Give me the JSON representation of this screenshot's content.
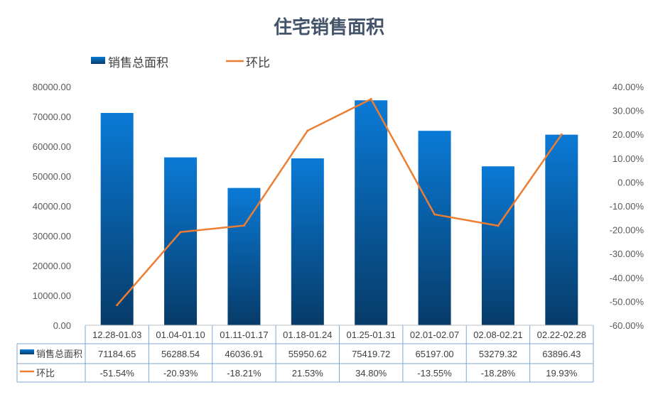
{
  "chart_data": {
    "type": "bar+line",
    "title": "住宅销售面积",
    "categories": [
      "12.28-01.03",
      "01.04-01.10",
      "01.11-01.17",
      "01.18-01.24",
      "01.25-01.31",
      "02.01-02.07",
      "02.08-02.21",
      "02.22-02.28"
    ],
    "series": [
      {
        "name": "销售总面积",
        "type": "bar",
        "axis": "left",
        "values": [
          71184.65,
          56288.54,
          46036.91,
          55950.62,
          75419.72,
          65197.0,
          53279.32,
          63896.43
        ],
        "labels": [
          "71184.65",
          "56288.54",
          "46036.91",
          "55950.62",
          "75419.72",
          "65197.00",
          "53279.32",
          "63896.43"
        ],
        "color": "#0b6fc0"
      },
      {
        "name": "环比",
        "type": "line",
        "axis": "right",
        "values": [
          -51.54,
          -20.93,
          -18.21,
          21.53,
          34.8,
          -13.55,
          -18.28,
          19.93
        ],
        "labels": [
          "-51.54%",
          "-20.93%",
          "-18.21%",
          "21.53%",
          "34.80%",
          "-13.55%",
          "-18.28%",
          "19.93%"
        ],
        "color": "#ed7d31"
      }
    ],
    "y_left": {
      "range": [
        0,
        80000
      ],
      "ticks": [
        "0.00",
        "10000.00",
        "20000.00",
        "30000.00",
        "40000.00",
        "50000.00",
        "60000.00",
        "70000.00",
        "80000.00"
      ]
    },
    "y_right": {
      "range": [
        -60,
        40
      ],
      "ticks": [
        "-60.00%",
        "-50.00%",
        "-40.00%",
        "-30.00%",
        "-20.00%",
        "-10.00%",
        "0.00%",
        "10.00%",
        "20.00%",
        "30.00%",
        "40.00%"
      ]
    },
    "legend": "top-left",
    "data_table": true,
    "grid": false
  }
}
